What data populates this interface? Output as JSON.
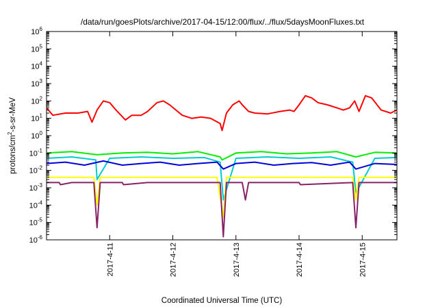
{
  "chart_data": {
    "type": "line",
    "title": "/data/run/goesPlots/archive/2017-04-15/12:00/flux/../flux/5daysMoonFluxes.txt",
    "xlabel": "Coordinated Universal Time (UTC)",
    "ylabel": "protons/cm2-s-sr-MeV",
    "ylabel_parts": {
      "pre": "protons/cm",
      "sup": "2",
      "post": "-s-sr-MeV"
    },
    "yscale": "log",
    "ylim": [
      1e-06,
      1000000.0
    ],
    "xlim": [
      0,
      5.55
    ],
    "x_units": "days since 2017-04-10 00:00 UTC",
    "grid": false,
    "x_ticks": [
      {
        "x": 1,
        "label": "2017-4-11"
      },
      {
        "x": 2,
        "label": "2017-4-12"
      },
      {
        "x": 3,
        "label": "2017-4-13"
      },
      {
        "x": 4,
        "label": "2017-4-14"
      },
      {
        "x": 5,
        "label": "2017-4-15"
      }
    ],
    "y_ticks": [
      {
        "v": 1e-06,
        "base": "10",
        "exp": "-6"
      },
      {
        "v": 1e-05,
        "base": "10",
        "exp": "-5"
      },
      {
        "v": 0.0001,
        "base": "10",
        "exp": "-4"
      },
      {
        "v": 0.001,
        "base": "10",
        "exp": "-3"
      },
      {
        "v": 0.01,
        "base": "10",
        "exp": "-2"
      },
      {
        "v": 0.1,
        "base": "10",
        "exp": "-1"
      },
      {
        "v": 1,
        "base": "10",
        "exp": "0"
      },
      {
        "v": 10,
        "base": "10",
        "exp": "1"
      },
      {
        "v": 100,
        "base": "10",
        "exp": "2"
      },
      {
        "v": 1000,
        "base": "10",
        "exp": "3"
      },
      {
        "v": 10000,
        "base": "10",
        "exp": "4"
      },
      {
        "v": 100000,
        "base": "10",
        "exp": "5"
      },
      {
        "v": 1000000,
        "base": "10",
        "exp": "6"
      }
    ],
    "series": [
      {
        "color": "#ff0000",
        "x": [
          0,
          0.1,
          0.3,
          0.5,
          0.65,
          0.72,
          0.8,
          0.9,
          1.0,
          1.1,
          1.25,
          1.35,
          1.5,
          1.6,
          1.75,
          1.85,
          1.95,
          2.05,
          2.15,
          2.3,
          2.45,
          2.6,
          2.75,
          2.78,
          2.85,
          2.95,
          3.05,
          3.1,
          3.2,
          3.3,
          3.5,
          3.7,
          3.85,
          3.92,
          4.0,
          4.1,
          4.2,
          4.3,
          4.45,
          4.6,
          4.7,
          4.8,
          4.88,
          4.95,
          5.05,
          5.15,
          5.3,
          5.45,
          5.55
        ],
        "values": [
          40,
          15,
          20,
          20,
          25,
          6,
          30,
          100,
          80,
          30,
          8,
          15,
          15,
          25,
          80,
          100,
          60,
          30,
          15,
          10,
          12,
          10,
          5,
          2,
          20,
          60,
          100,
          60,
          25,
          20,
          18,
          25,
          30,
          25,
          60,
          200,
          150,
          80,
          60,
          40,
          30,
          40,
          100,
          25,
          200,
          150,
          30,
          20,
          30
        ]
      },
      {
        "color": "#00ee00",
        "x": [
          0,
          0.4,
          0.8,
          1.2,
          1.6,
          2.0,
          2.4,
          2.75,
          2.78,
          3.0,
          3.4,
          3.8,
          4.2,
          4.6,
          4.9,
          5.2,
          5.55
        ],
        "values": [
          0.1,
          0.12,
          0.08,
          0.1,
          0.11,
          0.09,
          0.12,
          0.06,
          0.04,
          0.1,
          0.12,
          0.09,
          0.1,
          0.12,
          0.06,
          0.11,
          0.1
        ]
      },
      {
        "color": "#00cccc",
        "x": [
          0,
          0.4,
          0.78,
          0.8,
          1.0,
          1.5,
          2.0,
          2.5,
          2.75,
          2.8,
          3.0,
          3.5,
          4.0,
          4.5,
          4.85,
          4.9,
          5.2,
          5.55
        ],
        "values": [
          0.05,
          0.06,
          0.04,
          0.003,
          0.05,
          0.06,
          0.05,
          0.055,
          0.03,
          0.0002,
          0.05,
          0.06,
          0.05,
          0.06,
          0.03,
          0.0005,
          0.05,
          0.055
        ]
      },
      {
        "color": "#0000dd",
        "x": [
          0,
          0.3,
          0.6,
          0.9,
          1.2,
          1.5,
          1.8,
          2.1,
          2.4,
          2.7,
          2.8,
          3.0,
          3.3,
          3.6,
          3.9,
          4.2,
          4.5,
          4.8,
          4.9,
          5.2,
          5.55
        ],
        "values": [
          0.025,
          0.03,
          0.02,
          0.035,
          0.02,
          0.025,
          0.03,
          0.02,
          0.025,
          0.03,
          0.012,
          0.025,
          0.03,
          0.02,
          0.025,
          0.028,
          0.02,
          0.03,
          0.012,
          0.025,
          0.022
        ]
      },
      {
        "color": "#ffff00",
        "x": [
          0,
          0.75,
          0.8,
          0.85,
          2.7,
          2.8,
          2.85,
          4.85,
          4.9,
          4.95,
          5.55
        ],
        "values": [
          0.004,
          0.004,
          0.0001,
          0.004,
          0.004,
          2e-05,
          0.004,
          0.004,
          0.0002,
          0.004,
          0.004
        ]
      },
      {
        "color": "#882266",
        "x": [
          0,
          0.2,
          0.22,
          0.4,
          0.75,
          0.8,
          0.85,
          1.2,
          1.22,
          1.6,
          2.0,
          2.5,
          2.75,
          2.8,
          2.85,
          3.1,
          3.15,
          3.2,
          4.0,
          4.02,
          4.85,
          4.9,
          4.95,
          5.55
        ],
        "values": [
          0.002,
          0.002,
          0.0015,
          0.002,
          0.002,
          5e-06,
          0.002,
          0.002,
          0.0015,
          0.002,
          0.002,
          0.002,
          0.002,
          1.5e-06,
          0.002,
          0.002,
          0.0002,
          0.002,
          0.002,
          0.0015,
          0.002,
          5e-06,
          0.002,
          0.002
        ]
      }
    ]
  }
}
